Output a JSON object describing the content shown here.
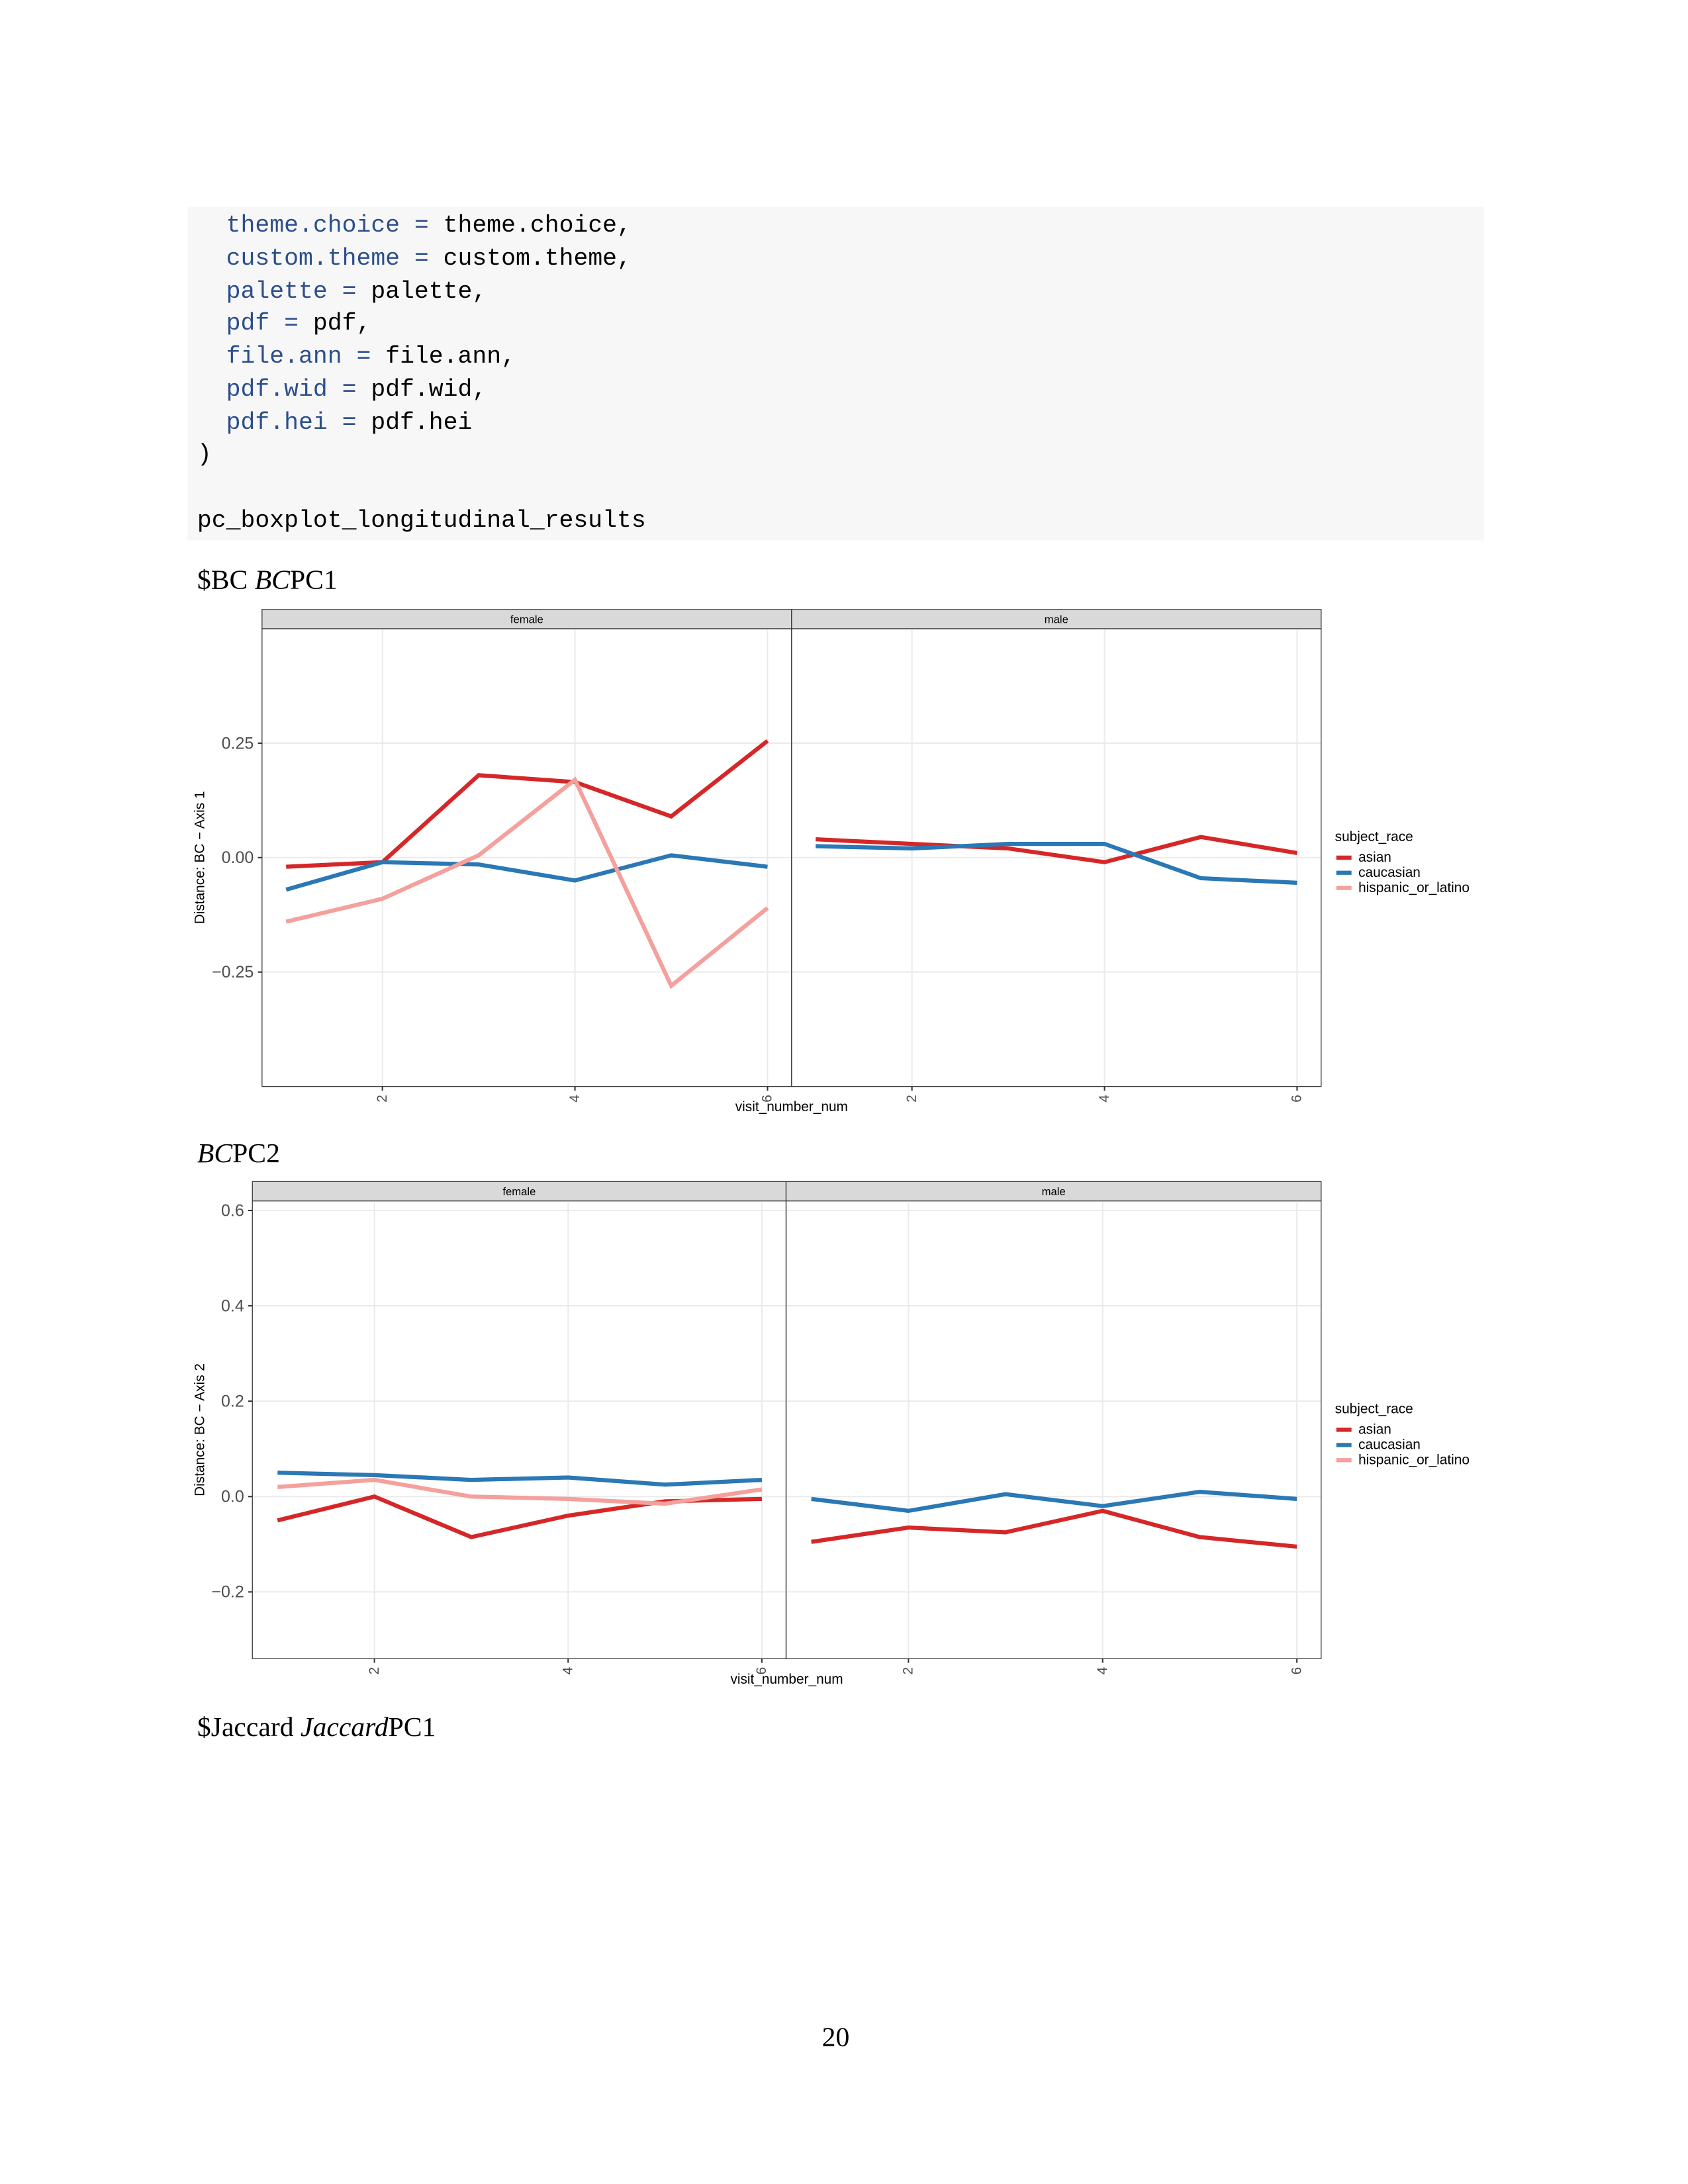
{
  "code": {
    "lines": [
      {
        "arg": "theme.choice =",
        "value": "theme.choice,"
      },
      {
        "arg": "custom.theme =",
        "value": "custom.theme,"
      },
      {
        "arg": "palette =",
        "value": "palette,"
      },
      {
        "arg": "pdf =",
        "value": "pdf,"
      },
      {
        "arg": "file.ann =",
        "value": "file.ann,"
      },
      {
        "arg": "pdf.wid =",
        "value": "pdf.wid,"
      },
      {
        "arg": "pdf.hei =",
        "value": "pdf.hei"
      },
      {
        "text": ")"
      },
      {
        "text": "pc_boxplot_longitudinal_results"
      }
    ]
  },
  "headings": [
    [
      {
        "text": "$BC "
      },
      {
        "text": "BC",
        "italic": true
      },
      {
        "text": "PC1"
      }
    ],
    [
      {
        "text": "BC",
        "italic": true
      },
      {
        "text": "PC2"
      }
    ],
    [
      {
        "text": "$Jaccard "
      },
      {
        "text": "Jaccard",
        "italic": true
      },
      {
        "text": "PC1"
      }
    ]
  ],
  "chart_data": [
    {
      "type": "line",
      "facets": [
        "female",
        "male"
      ],
      "x": [
        1,
        2,
        3,
        4,
        5,
        6
      ],
      "xlim": [
        0.75,
        6.25
      ],
      "xticks": [
        2,
        4,
        6
      ],
      "ylim": [
        -0.5,
        0.5
      ],
      "yticks": [
        {
          "value": -0.25,
          "label": "−0.25"
        },
        {
          "value": 0,
          "label": "0.00"
        },
        {
          "value": 0.25,
          "label": "0.25"
        }
      ],
      "y_label": "Distance: BC − Axis 1",
      "x_label": "visit_number_num",
      "legend_title": "subject_race",
      "grid": true,
      "series": [
        {
          "name": "asian",
          "color": "#d62728",
          "values": [
            [
              -0.02,
              -0.01,
              0.18,
              0.165,
              0.09,
              0.255
            ],
            [
              0.04,
              0.03,
              0.02,
              -0.01,
              0.045,
              0.01
            ]
          ]
        },
        {
          "name": "caucasian",
          "color": "#2a78b5",
          "values": [
            [
              -0.07,
              -0.01,
              -0.015,
              -0.05,
              0.005,
              -0.02
            ],
            [
              0.025,
              0.02,
              0.03,
              0.03,
              -0.045,
              -0.055
            ]
          ]
        },
        {
          "name": "hispanic_or_latino",
          "color": "#f4a09c",
          "values": [
            [
              -0.14,
              -0.09,
              0.005,
              0.17,
              -0.28,
              -0.11
            ],
            null
          ]
        }
      ]
    },
    {
      "type": "line",
      "facets": [
        "female",
        "male"
      ],
      "x": [
        1,
        2,
        3,
        4,
        5,
        6
      ],
      "xlim": [
        0.74,
        6.25
      ],
      "xticks": [
        2,
        4,
        6
      ],
      "ylim": [
        -0.34,
        0.62
      ],
      "yticks": [
        {
          "value": -0.2,
          "label": "−0.2"
        },
        {
          "value": 0,
          "label": "0.0"
        },
        0.2,
        0.4,
        0.6
      ],
      "y_label": "Distance: BC − Axis 2",
      "x_label": "visit_number_num",
      "legend_title": "subject_race",
      "grid": true,
      "series": [
        {
          "name": "asian",
          "color": "#d62728",
          "values": [
            [
              -0.05,
              0.0,
              -0.085,
              -0.04,
              -0.01,
              -0.005
            ],
            [
              -0.095,
              -0.065,
              -0.075,
              -0.03,
              -0.085,
              -0.105
            ]
          ]
        },
        {
          "name": "caucasian",
          "color": "#2a78b5",
          "values": [
            [
              0.05,
              0.045,
              0.035,
              0.04,
              0.025,
              0.035
            ],
            [
              -0.005,
              -0.03,
              0.005,
              -0.02,
              0.01,
              -0.005
            ]
          ]
        },
        {
          "name": "hispanic_or_latino",
          "color": "#f4a09c",
          "values": [
            [
              0.02,
              0.035,
              0.0,
              -0.005,
              -0.015,
              0.015
            ],
            null
          ]
        }
      ]
    }
  ],
  "page_number": "20"
}
